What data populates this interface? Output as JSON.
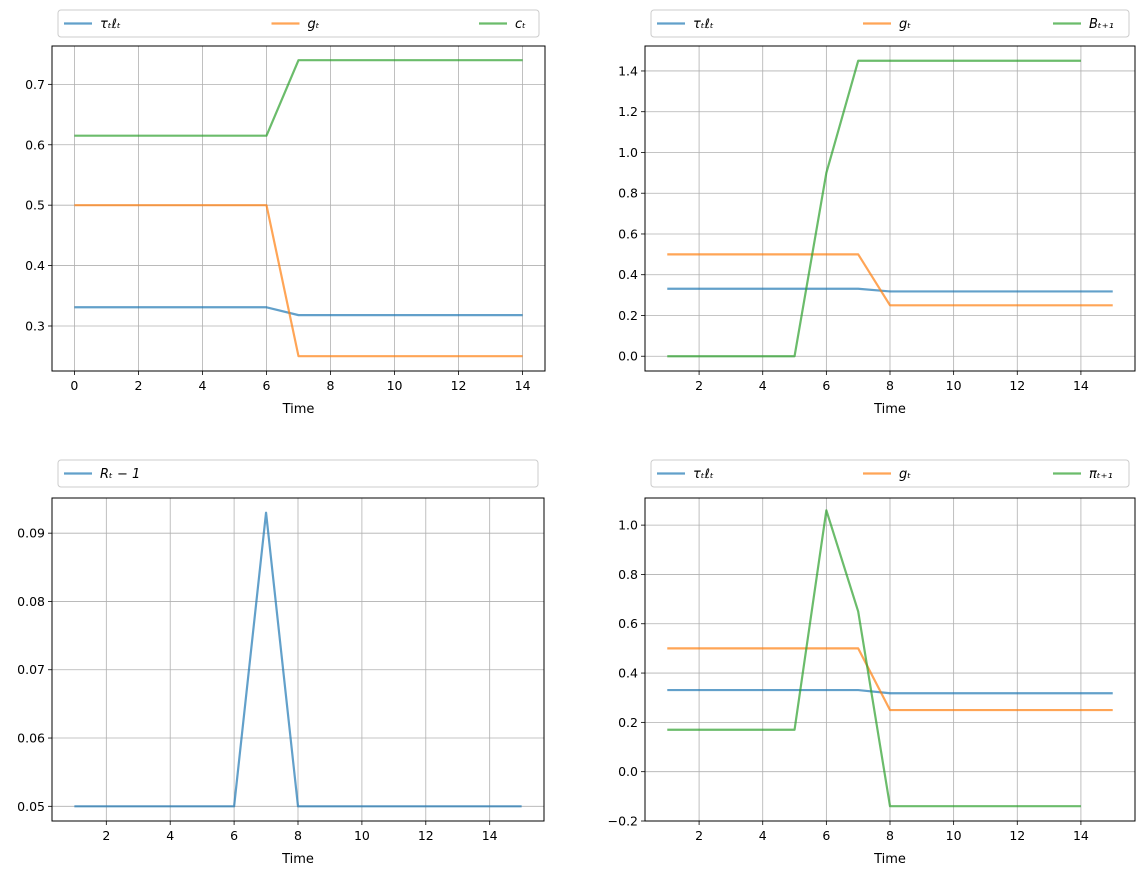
{
  "chart_data": [
    {
      "type": "line",
      "xlabel": "Time",
      "xlim": [
        -0.7,
        14.7
      ],
      "ylim": [
        0.2255,
        0.7635
      ],
      "xticks": [
        0,
        2,
        4,
        6,
        8,
        10,
        12,
        14
      ],
      "yticks": [
        0.3,
        0.4,
        0.5,
        0.6,
        0.7
      ],
      "grid": true,
      "legend": "above-plot",
      "x": [
        0,
        1,
        2,
        3,
        4,
        5,
        6,
        7,
        8,
        9,
        10,
        11,
        12,
        13,
        14
      ],
      "series": [
        {
          "name": "τₜℓₜ",
          "color": "#1f77b4",
          "values": [
            0.331,
            0.331,
            0.331,
            0.331,
            0.331,
            0.331,
            0.331,
            0.318,
            0.318,
            0.318,
            0.318,
            0.318,
            0.318,
            0.318,
            0.318
          ]
        },
        {
          "name": "gₜ",
          "color": "#ff7f0e",
          "values": [
            0.5,
            0.5,
            0.5,
            0.5,
            0.5,
            0.5,
            0.5,
            0.25,
            0.25,
            0.25,
            0.25,
            0.25,
            0.25,
            0.25,
            0.25
          ]
        },
        {
          "name": "cₜ",
          "color": "#2ca02c",
          "values": [
            0.615,
            0.615,
            0.615,
            0.615,
            0.615,
            0.615,
            0.615,
            0.74,
            0.74,
            0.74,
            0.74,
            0.74,
            0.74,
            0.74,
            0.74
          ]
        }
      ]
    },
    {
      "type": "line",
      "xlabel": "Time",
      "xlim": [
        0.3,
        15.7
      ],
      "ylim": [
        -0.0725,
        1.5225
      ],
      "xticks": [
        2,
        4,
        6,
        8,
        10,
        12,
        14
      ],
      "yticks": [
        0.0,
        0.2,
        0.4,
        0.6,
        0.8,
        1.0,
        1.2,
        1.4
      ],
      "grid": true,
      "legend": "above-plot",
      "series": [
        {
          "name": "τₜℓₜ",
          "color": "#1f77b4",
          "x": [
            1,
            2,
            3,
            4,
            5,
            6,
            7,
            8,
            9,
            10,
            11,
            12,
            13,
            14,
            15
          ],
          "values": [
            0.331,
            0.331,
            0.331,
            0.331,
            0.331,
            0.331,
            0.331,
            0.318,
            0.318,
            0.318,
            0.318,
            0.318,
            0.318,
            0.318,
            0.318
          ]
        },
        {
          "name": "gₜ",
          "color": "#ff7f0e",
          "x": [
            1,
            2,
            3,
            4,
            5,
            6,
            7,
            8,
            9,
            10,
            11,
            12,
            13,
            14,
            15
          ],
          "values": [
            0.5,
            0.5,
            0.5,
            0.5,
            0.5,
            0.5,
            0.5,
            0.25,
            0.25,
            0.25,
            0.25,
            0.25,
            0.25,
            0.25,
            0.25
          ]
        },
        {
          "name": "Bₜ₊₁",
          "color": "#2ca02c",
          "x": [
            1,
            2,
            3,
            4,
            5,
            6,
            7,
            8,
            9,
            10,
            11,
            12,
            13,
            14
          ],
          "values": [
            0.0,
            0.0,
            0.0,
            0.0,
            0.0,
            0.9,
            1.45,
            1.45,
            1.45,
            1.45,
            1.45,
            1.45,
            1.45,
            1.45
          ]
        }
      ]
    },
    {
      "type": "line",
      "xlabel": "Time",
      "xlim": [
        0.3,
        15.7
      ],
      "ylim": [
        0.04785,
        0.09515
      ],
      "xticks": [
        2,
        4,
        6,
        8,
        10,
        12,
        14
      ],
      "yticks": [
        0.05,
        0.06,
        0.07,
        0.08,
        0.09
      ],
      "grid": true,
      "legend": "above-plot",
      "x": [
        1,
        2,
        3,
        4,
        5,
        6,
        7,
        8,
        9,
        10,
        11,
        12,
        13,
        14,
        15
      ],
      "series": [
        {
          "name": "Rₜ − 1",
          "color": "#1f77b4",
          "values": [
            0.05,
            0.05,
            0.05,
            0.05,
            0.05,
            0.05,
            0.093,
            0.05,
            0.05,
            0.05,
            0.05,
            0.05,
            0.05,
            0.05,
            0.05
          ]
        }
      ]
    },
    {
      "type": "line",
      "xlabel": "Time",
      "xlim": [
        0.3,
        15.7
      ],
      "ylim": [
        -0.2,
        1.11
      ],
      "xticks": [
        2,
        4,
        6,
        8,
        10,
        12,
        14
      ],
      "yticks": [
        -0.2,
        0.0,
        0.2,
        0.4,
        0.6,
        0.8,
        1.0
      ],
      "grid": true,
      "legend": "above-plot",
      "series": [
        {
          "name": "τₜℓₜ",
          "color": "#1f77b4",
          "x": [
            1,
            2,
            3,
            4,
            5,
            6,
            7,
            8,
            9,
            10,
            11,
            12,
            13,
            14,
            15
          ],
          "values": [
            0.331,
            0.331,
            0.331,
            0.331,
            0.331,
            0.331,
            0.331,
            0.318,
            0.318,
            0.318,
            0.318,
            0.318,
            0.318,
            0.318,
            0.318
          ]
        },
        {
          "name": "gₜ",
          "color": "#ff7f0e",
          "x": [
            1,
            2,
            3,
            4,
            5,
            6,
            7,
            8,
            9,
            10,
            11,
            12,
            13,
            14,
            15
          ],
          "values": [
            0.5,
            0.5,
            0.5,
            0.5,
            0.5,
            0.5,
            0.5,
            0.25,
            0.25,
            0.25,
            0.25,
            0.25,
            0.25,
            0.25,
            0.25
          ]
        },
        {
          "name": "πₜ₊₁",
          "color": "#2ca02c",
          "x": [
            1,
            2,
            3,
            4,
            5,
            6,
            7,
            8,
            9,
            10,
            11,
            12,
            13,
            14
          ],
          "values": [
            0.17,
            0.17,
            0.17,
            0.17,
            0.17,
            1.06,
            0.65,
            -0.14,
            -0.14,
            -0.14,
            -0.14,
            -0.14,
            -0.14,
            -0.14
          ]
        }
      ]
    }
  ]
}
